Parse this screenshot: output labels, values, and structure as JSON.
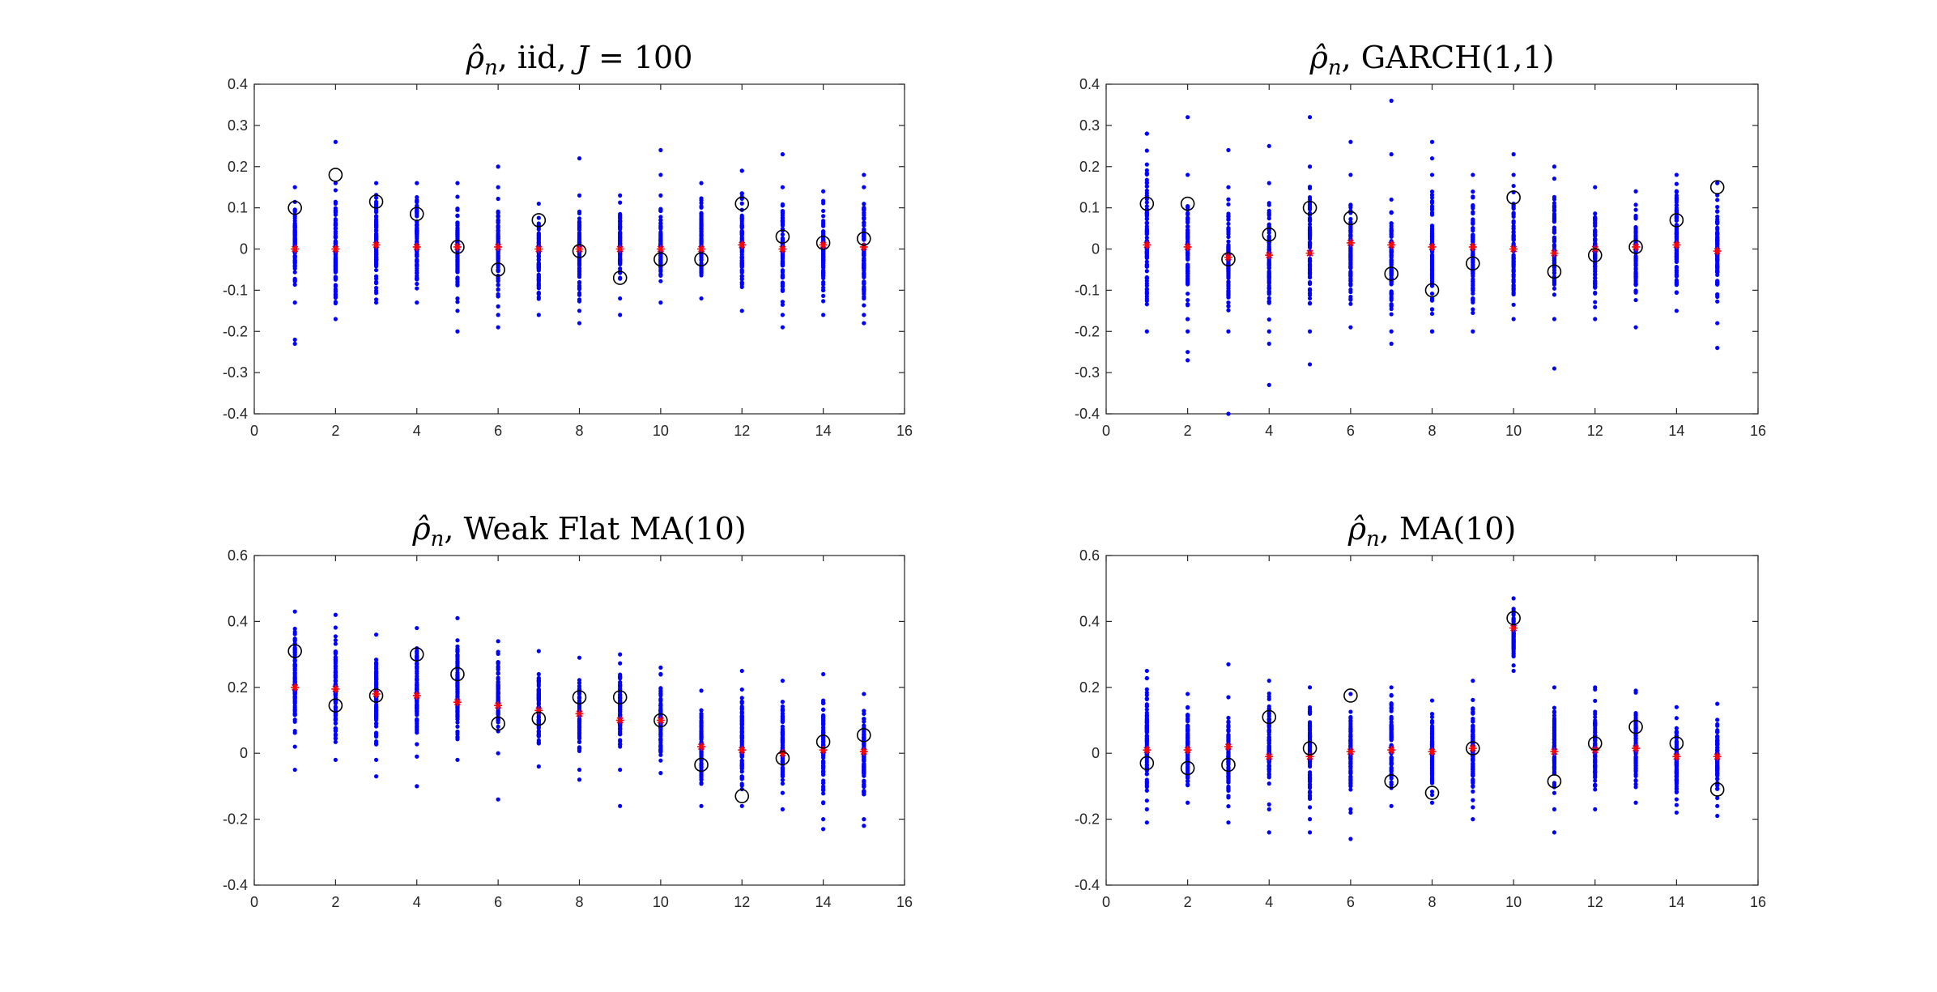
{
  "colors": {
    "dots": "#0000ff",
    "mean_marker": "#ff0000",
    "observed_circle": "#000000",
    "axes": "#262626"
  },
  "chart_data": [
    {
      "type": "scatter",
      "title_math": "ρ̂",
      "title_math_sub": "n",
      "title_text": ", iid, ",
      "title_suffix_italic": "J",
      "title_suffix": " = 100",
      "xlim": [
        0,
        16
      ],
      "ylim": [
        -0.4,
        0.4
      ],
      "xticks": [
        0,
        2,
        4,
        6,
        8,
        10,
        12,
        14,
        16
      ],
      "yticks": [
        "-0.4",
        "-0.3",
        "-0.2",
        "-0.1",
        "0",
        "0.1",
        "0.2",
        "0.3",
        "0.4"
      ],
      "lags": [
        1,
        2,
        3,
        4,
        5,
        6,
        7,
        8,
        9,
        10,
        11,
        12,
        13,
        14,
        15
      ],
      "simulated_range": [
        [
          -0.13,
          0.15
        ],
        [
          -0.17,
          0.16
        ],
        [
          -0.13,
          0.16
        ],
        [
          -0.13,
          0.16
        ],
        [
          -0.15,
          0.16
        ],
        [
          -0.16,
          0.15
        ],
        [
          -0.16,
          0.11
        ],
        [
          -0.15,
          0.13
        ],
        [
          -0.12,
          0.13
        ],
        [
          -0.13,
          0.13
        ],
        [
          -0.12,
          0.16
        ],
        [
          -0.15,
          0.19
        ],
        [
          -0.16,
          0.15
        ],
        [
          -0.16,
          0.14
        ],
        [
          -0.16,
          0.15
        ]
      ],
      "simulated_outliers": [
        [
          1,
          -0.23
        ],
        [
          1,
          -0.22
        ],
        [
          2,
          0.26
        ],
        [
          5,
          -0.2
        ],
        [
          6,
          0.2
        ],
        [
          6,
          -0.19
        ],
        [
          8,
          0.22
        ],
        [
          8,
          -0.18
        ],
        [
          9,
          -0.16
        ],
        [
          10,
          0.24
        ],
        [
          10,
          0.18
        ],
        [
          12,
          0.19
        ],
        [
          13,
          0.23
        ],
        [
          13,
          -0.19
        ],
        [
          15,
          0.18
        ],
        [
          15,
          -0.18
        ]
      ],
      "mean": [
        0,
        0,
        0.01,
        0.005,
        0.005,
        0.005,
        0,
        0,
        0,
        0,
        0,
        0.01,
        0,
        0.01,
        0.005
      ],
      "observed": [
        0.1,
        0.18,
        0.115,
        0.085,
        0.005,
        -0.05,
        0.07,
        -0.005,
        -0.07,
        -0.025,
        -0.025,
        0.11,
        0.03,
        0.015,
        0.025
      ]
    },
    {
      "type": "scatter",
      "title_math": "ρ̂",
      "title_math_sub": "n",
      "title_text": ", GARCH(1,1)",
      "xlim": [
        0,
        16
      ],
      "ylim": [
        -0.4,
        0.4
      ],
      "xticks": [
        0,
        2,
        4,
        6,
        8,
        10,
        12,
        14,
        16
      ],
      "yticks": [
        "-0.4",
        "-0.3",
        "-0.2",
        "-0.1",
        "0",
        "0.1",
        "0.2",
        "0.3",
        "0.4"
      ],
      "lags": [
        1,
        2,
        3,
        4,
        5,
        6,
        7,
        8,
        9,
        10,
        11,
        12,
        13,
        14,
        15
      ],
      "simulated_range": [
        [
          -0.2,
          0.28
        ],
        [
          -0.2,
          0.18
        ],
        [
          -0.2,
          0.15
        ],
        [
          -0.2,
          0.16
        ],
        [
          -0.2,
          0.2
        ],
        [
          -0.19,
          0.18
        ],
        [
          -0.2,
          0.12
        ],
        [
          -0.2,
          0.18
        ],
        [
          -0.2,
          0.18
        ],
        [
          -0.17,
          0.18
        ],
        [
          -0.17,
          0.2
        ],
        [
          -0.17,
          0.15
        ],
        [
          -0.19,
          0.14
        ],
        [
          -0.15,
          0.18
        ],
        [
          -0.18,
          0.16
        ]
      ],
      "simulated_outliers": [
        [
          1,
          0.28
        ],
        [
          2,
          0.32
        ],
        [
          2,
          -0.25
        ],
        [
          2,
          -0.27
        ],
        [
          3,
          -0.4
        ],
        [
          3,
          0.24
        ],
        [
          4,
          -0.33
        ],
        [
          4,
          0.25
        ],
        [
          4,
          -0.23
        ],
        [
          5,
          0.32
        ],
        [
          5,
          -0.28
        ],
        [
          6,
          0.26
        ],
        [
          7,
          0.36
        ],
        [
          7,
          0.23
        ],
        [
          7,
          -0.23
        ],
        [
          8,
          0.26
        ],
        [
          8,
          0.22
        ],
        [
          8,
          -0.2
        ],
        [
          10,
          0.23
        ],
        [
          11,
          -0.29
        ],
        [
          15,
          -0.24
        ]
      ],
      "mean": [
        0.01,
        0.005,
        -0.02,
        -0.015,
        -0.01,
        0.015,
        0.01,
        0.005,
        0.005,
        0,
        -0.01,
        0,
        0.005,
        0.01,
        -0.005
      ],
      "observed": [
        0.11,
        0.11,
        -0.025,
        0.035,
        0.1,
        0.075,
        -0.06,
        -0.1,
        -0.035,
        0.125,
        -0.055,
        -0.015,
        0.005,
        0.07,
        0.15
      ]
    },
    {
      "type": "scatter",
      "title_math": "ρ̂",
      "title_math_sub": "n",
      "title_text": ", Weak Flat MA(10)",
      "xlim": [
        0,
        16
      ],
      "ylim": [
        -0.4,
        0.6
      ],
      "xticks": [
        0,
        2,
        4,
        6,
        8,
        10,
        12,
        14,
        16
      ],
      "yticks": [
        "-0.4",
        "-0.2",
        "0",
        "0.2",
        "0.4",
        "0.6"
      ],
      "lags": [
        1,
        2,
        3,
        4,
        5,
        6,
        7,
        8,
        9,
        10,
        11,
        12,
        13,
        14,
        15
      ],
      "simulated_range": [
        [
          0.02,
          0.43
        ],
        [
          -0.02,
          0.42
        ],
        [
          -0.02,
          0.36
        ],
        [
          -0.01,
          0.38
        ],
        [
          -0.02,
          0.41
        ],
        [
          0.0,
          0.34
        ],
        [
          -0.04,
          0.31
        ],
        [
          -0.05,
          0.29
        ],
        [
          -0.05,
          0.3
        ],
        [
          -0.06,
          0.26
        ],
        [
          -0.16,
          0.19
        ],
        [
          -0.16,
          0.25
        ],
        [
          -0.17,
          0.22
        ],
        [
          -0.2,
          0.24
        ],
        [
          -0.2,
          0.18
        ]
      ],
      "simulated_outliers": [
        [
          1,
          -0.05
        ],
        [
          3,
          -0.07
        ],
        [
          4,
          -0.1
        ],
        [
          6,
          -0.14
        ],
        [
          8,
          -0.08
        ],
        [
          9,
          -0.16
        ],
        [
          14,
          -0.23
        ],
        [
          15,
          -0.22
        ]
      ],
      "mean": [
        0.2,
        0.195,
        0.18,
        0.175,
        0.155,
        0.145,
        0.13,
        0.12,
        0.1,
        0.1,
        0.02,
        0.01,
        0.0,
        0.01,
        0.005
      ],
      "observed": [
        0.31,
        0.145,
        0.175,
        0.3,
        0.24,
        0.09,
        0.105,
        0.17,
        0.17,
        0.1,
        -0.035,
        -0.13,
        -0.015,
        0.035,
        0.055
      ]
    },
    {
      "type": "scatter",
      "title_math": "ρ̂",
      "title_math_sub": "n",
      "title_text": ", MA(10)",
      "xlim": [
        0,
        16
      ],
      "ylim": [
        -0.4,
        0.6
      ],
      "xticks": [
        0,
        2,
        4,
        6,
        8,
        10,
        12,
        14,
        16
      ],
      "yticks": [
        "-0.4",
        "-0.2",
        "0",
        "0.2",
        "0.4",
        "0.6"
      ],
      "lags": [
        1,
        2,
        3,
        4,
        5,
        6,
        7,
        8,
        9,
        10,
        11,
        12,
        13,
        14,
        15
      ],
      "simulated_range": [
        [
          -0.17,
          0.25
        ],
        [
          -0.15,
          0.18
        ],
        [
          -0.21,
          0.17
        ],
        [
          -0.17,
          0.22
        ],
        [
          -0.2,
          0.2
        ],
        [
          -0.17,
          0.18
        ],
        [
          -0.16,
          0.2
        ],
        [
          -0.15,
          0.16
        ],
        [
          -0.2,
          0.22
        ],
        [
          0.25,
          0.47
        ],
        [
          -0.17,
          0.2
        ],
        [
          -0.17,
          0.2
        ],
        [
          -0.15,
          0.19
        ],
        [
          -0.18,
          0.14
        ],
        [
          -0.16,
          0.15
        ]
      ],
      "simulated_outliers": [
        [
          1,
          -0.21
        ],
        [
          3,
          0.27
        ],
        [
          4,
          -0.24
        ],
        [
          5,
          -0.24
        ],
        [
          6,
          -0.26
        ],
        [
          6,
          -0.18
        ],
        [
          11,
          -0.24
        ],
        [
          15,
          -0.19
        ]
      ],
      "mean": [
        0.01,
        0.01,
        0.02,
        -0.01,
        -0.01,
        0.005,
        0.01,
        0.005,
        0.015,
        0.38,
        0.005,
        0.01,
        0.015,
        -0.01,
        -0.01
      ],
      "observed": [
        -0.03,
        -0.045,
        -0.035,
        0.11,
        0.015,
        0.175,
        -0.085,
        -0.12,
        0.015,
        0.41,
        -0.085,
        0.03,
        0.08,
        0.03,
        -0.11
      ]
    }
  ]
}
